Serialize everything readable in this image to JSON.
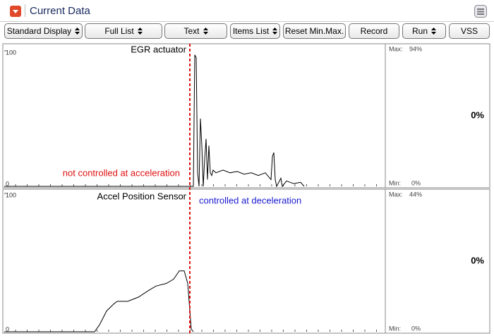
{
  "header": {
    "title": "Current Data"
  },
  "toolbar": [
    {
      "label": "Standard Display",
      "spinner": true
    },
    {
      "label": "Full List",
      "spinner": true
    },
    {
      "label": "Text",
      "spinner": true
    },
    {
      "label": "Items List",
      "spinner": true
    },
    {
      "label": "Reset Min.Max.",
      "spinner": false
    },
    {
      "label": "Record",
      "spinner": false
    },
    {
      "label": "Run",
      "spinner": true
    },
    {
      "label": "VSS",
      "spinner": false
    }
  ],
  "panels": [
    {
      "label": "EGR actuator",
      "max_label": "Max:",
      "max": "94%",
      "min_label": "Min:",
      "min": "0%",
      "current": "0%",
      "annotation": {
        "text": "not controlled at acceleration",
        "color": "#e01010"
      },
      "trace": {
        "type": "line",
        "color": "#000000",
        "xlim": [
          0,
          540
        ],
        "ylim": [
          0,
          100
        ],
        "yticks": [
          0,
          100
        ],
        "x": [
          0,
          268,
          270,
          272,
          274,
          276,
          278,
          280,
          282,
          284,
          286,
          288,
          290,
          292,
          294,
          296,
          300,
          310,
          320,
          330,
          340,
          350,
          360,
          370,
          378,
          380,
          382,
          384,
          386,
          392,
          394,
          400,
          410,
          420,
          425
        ],
        "values": [
          0,
          0,
          97,
          95,
          10,
          0,
          50,
          30,
          0,
          20,
          35,
          5,
          30,
          10,
          8,
          12,
          10,
          12,
          10,
          11,
          9,
          10,
          8,
          10,
          5,
          22,
          25,
          5,
          0,
          6,
          0,
          4,
          2,
          3,
          0
        ]
      }
    },
    {
      "label": "Accel Position Sensor",
      "max_label": "Max:",
      "max": "44%",
      "min_label": "Min:",
      "min": "0%",
      "current": "0%",
      "annotation": {
        "text": "controlled at deceleration",
        "color": "#1a1ad0"
      },
      "trace": {
        "type": "line",
        "color": "#000000",
        "xlim": [
          0,
          540
        ],
        "ylim": [
          0,
          100
        ],
        "yticks": [
          0,
          100
        ],
        "x": [
          0,
          128,
          135,
          145,
          155,
          160,
          175,
          190,
          205,
          215,
          230,
          240,
          248,
          255,
          260,
          265,
          268
        ],
        "values": [
          0,
          0,
          5,
          15,
          20,
          22,
          22,
          25,
          30,
          33,
          35,
          38,
          44,
          44,
          35,
          2,
          0
        ]
      }
    }
  ]
}
